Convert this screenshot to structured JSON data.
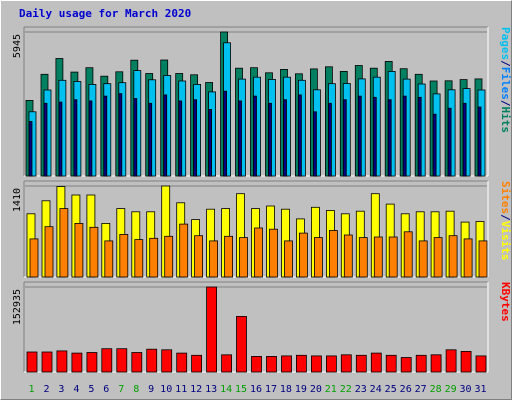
{
  "chart_data": {
    "type": "bar",
    "title": "Daily usage for March 2020",
    "categories": [
      "1",
      "2",
      "3",
      "4",
      "5",
      "6",
      "7",
      "8",
      "9",
      "10",
      "11",
      "12",
      "13",
      "14",
      "15",
      "16",
      "17",
      "18",
      "19",
      "20",
      "21",
      "22",
      "23",
      "24",
      "25",
      "26",
      "27",
      "28",
      "29",
      "30",
      "31"
    ],
    "weekend_days": [
      "1",
      "7",
      "8",
      "14",
      "15",
      "21",
      "22",
      "28",
      "29"
    ],
    "panels": [
      {
        "id": "traffic",
        "max_label": "5945",
        "ylim": [
          0,
          5945
        ],
        "legend": [
          {
            "text": "Pages",
            "color": "#00c0f0"
          },
          {
            "text": "/",
            "color": "#000080"
          },
          {
            "text": "Files",
            "color": "#0080ff"
          },
          {
            "text": "/",
            "color": "#000080"
          },
          {
            "text": "Hits",
            "color": "#008060"
          }
        ],
        "series": [
          {
            "name": "Hits",
            "color": "#008060",
            "values": [
              3120,
              4200,
              4850,
              4290,
              4470,
              4120,
              4300,
              4780,
              4230,
              4790,
              4230,
              4180,
              3860,
              5945,
              4450,
              4470,
              4260,
              4400,
              4220,
              4420,
              4510,
              4320,
              4560,
              4450,
              4730,
              4430,
              4200,
              3920,
              3930,
              3980,
              4010
            ]
          },
          {
            "name": "Files",
            "color": "#00c0f0",
            "values": [
              2650,
              3550,
              3950,
              3900,
              3780,
              3810,
              3850,
              4350,
              3970,
              4150,
              3920,
              3780,
              3470,
              5500,
              4000,
              4080,
              3990,
              4080,
              3950,
              3560,
              3810,
              3820,
              4010,
              4080,
              4320,
              4000,
              3800,
              3390,
              3560,
              3610,
              3550
            ]
          },
          {
            "name": "Pages",
            "color": "#000080",
            "values": [
              2250,
              3000,
              3050,
              3150,
              3100,
              3300,
              3400,
              3200,
              3000,
              3350,
              3100,
              3150,
              2750,
              3500,
              3100,
              3300,
              3000,
              3150,
              3350,
              2650,
              3000,
              3150,
              3300,
              3250,
              3150,
              3300,
              3250,
              2550,
              2800,
              3000,
              2850
            ]
          }
        ]
      },
      {
        "id": "visits",
        "max_label": "1410",
        "ylim": [
          0,
          1410
        ],
        "legend": [
          {
            "text": "Sites",
            "color": "#ff8000"
          },
          {
            "text": "/",
            "color": "#000080"
          },
          {
            "text": "Visits",
            "color": "#ffff00"
          }
        ],
        "series": [
          {
            "name": "Visits",
            "color": "#ffff00",
            "values": [
              980,
              1180,
              1400,
              1270,
              1270,
              830,
              1060,
              1010,
              1010,
              1410,
              1150,
              890,
              1050,
              1060,
              1290,
              1060,
              1100,
              1050,
              900,
              1080,
              1030,
              980,
              1020,
              1290,
              1130,
              980,
              1010,
              1010,
              1020,
              850,
              860
            ]
          },
          {
            "name": "Sites",
            "color": "#ff8000",
            "values": [
              590,
              780,
              1060,
              830,
              770,
              560,
              660,
              580,
              600,
              630,
              820,
              640,
              560,
              630,
              610,
              760,
              740,
              560,
              680,
              610,
              720,
              650,
              610,
              620,
              620,
              700,
              560,
              610,
              640,
              590,
              560
            ]
          }
        ]
      },
      {
        "id": "kbytes",
        "max_label": "152935",
        "ylim": [
          0,
          152935
        ],
        "legend": [
          {
            "text": "KBytes",
            "color": "#ff0000"
          }
        ],
        "series": [
          {
            "name": "KBytes",
            "color": "#ff0000",
            "values": [
              36000,
              36000,
              38000,
              34000,
              35000,
              42000,
              42000,
              35000,
              41000,
              40000,
              34000,
              30000,
              152935,
              31000,
              100000,
              28000,
              28000,
              29000,
              30000,
              29000,
              29000,
              31000,
              30000,
              34000,
              30000,
              26000,
              30000,
              31000,
              40000,
              37000,
              29000
            ]
          }
        ]
      }
    ]
  }
}
